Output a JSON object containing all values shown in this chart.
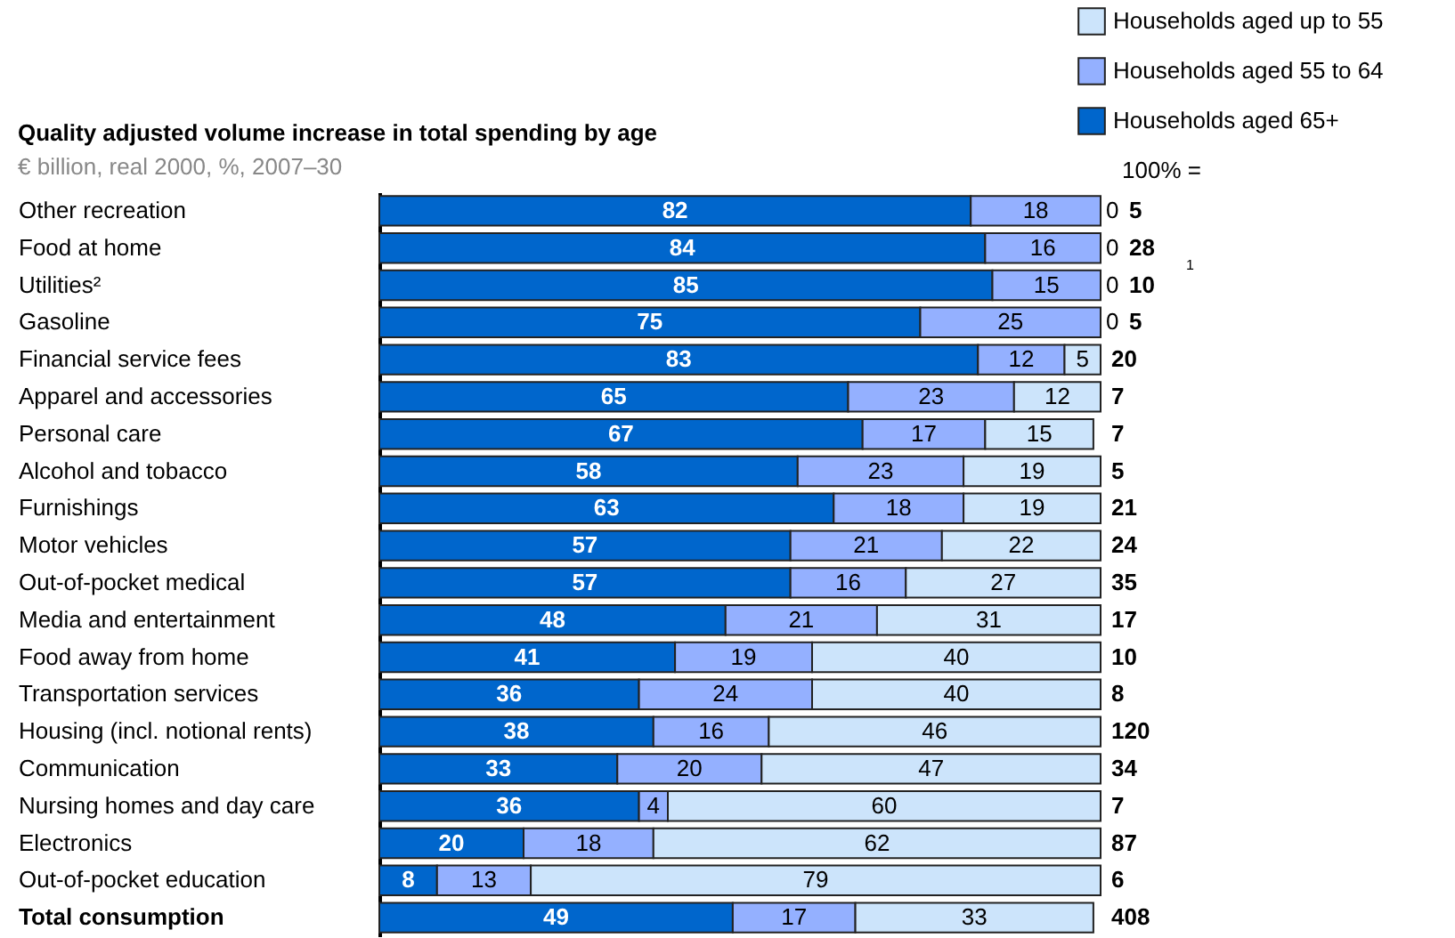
{
  "chart_data": {
    "type": "bar",
    "orientation": "horizontal",
    "stacked": true,
    "data_labels": true,
    "title": "Quality adjusted volume increase in total spending by age",
    "subtitle": "€ billion, real 2000, %, 2007–30",
    "categories": [
      "Other recreation",
      "Food at home",
      "Utilities²",
      "Gasoline",
      "Financial service fees",
      "Apparel and accessories",
      "Personal care",
      "Alcohol and tobacco",
      "Furnishings",
      "Motor vehicles",
      "Out-of-pocket medical",
      "Media and entertainment",
      "Food away from home",
      "Transportation services",
      "Housing (incl. notional rents)",
      "Communication",
      "Nursing homes and day care",
      "Electronics",
      "Out-of-pocket education",
      "Total consumption"
    ],
    "series": [
      {
        "name": "Households aged 65+",
        "color": "#0066cc",
        "values": [
          82,
          84,
          85,
          75,
          83,
          65,
          67,
          58,
          63,
          57,
          57,
          48,
          41,
          36,
          38,
          33,
          36,
          20,
          8,
          49
        ]
      },
      {
        "name": "Households aged 55 to 64",
        "color": "#94b0ff",
        "values": [
          18,
          16,
          15,
          25,
          12,
          23,
          17,
          23,
          18,
          21,
          16,
          21,
          19,
          24,
          16,
          20,
          4,
          18,
          13,
          17
        ]
      },
      {
        "name": "Households aged up to 55",
        "color": "#cce4fb",
        "values": [
          0,
          0,
          0,
          0,
          5,
          12,
          15,
          19,
          19,
          22,
          27,
          31,
          40,
          40,
          46,
          47,
          60,
          62,
          79,
          33
        ]
      }
    ],
    "legend": "top right",
    "grid": false,
    "annotations": [
      "100% =",
      "1",
      "5",
      "28",
      "10",
      "5",
      "20",
      "7",
      "7",
      "5",
      "21",
      "24",
      "35",
      "17",
      "10",
      "8",
      "120",
      "34",
      "7",
      "87",
      "6",
      "408"
    ]
  }
}
